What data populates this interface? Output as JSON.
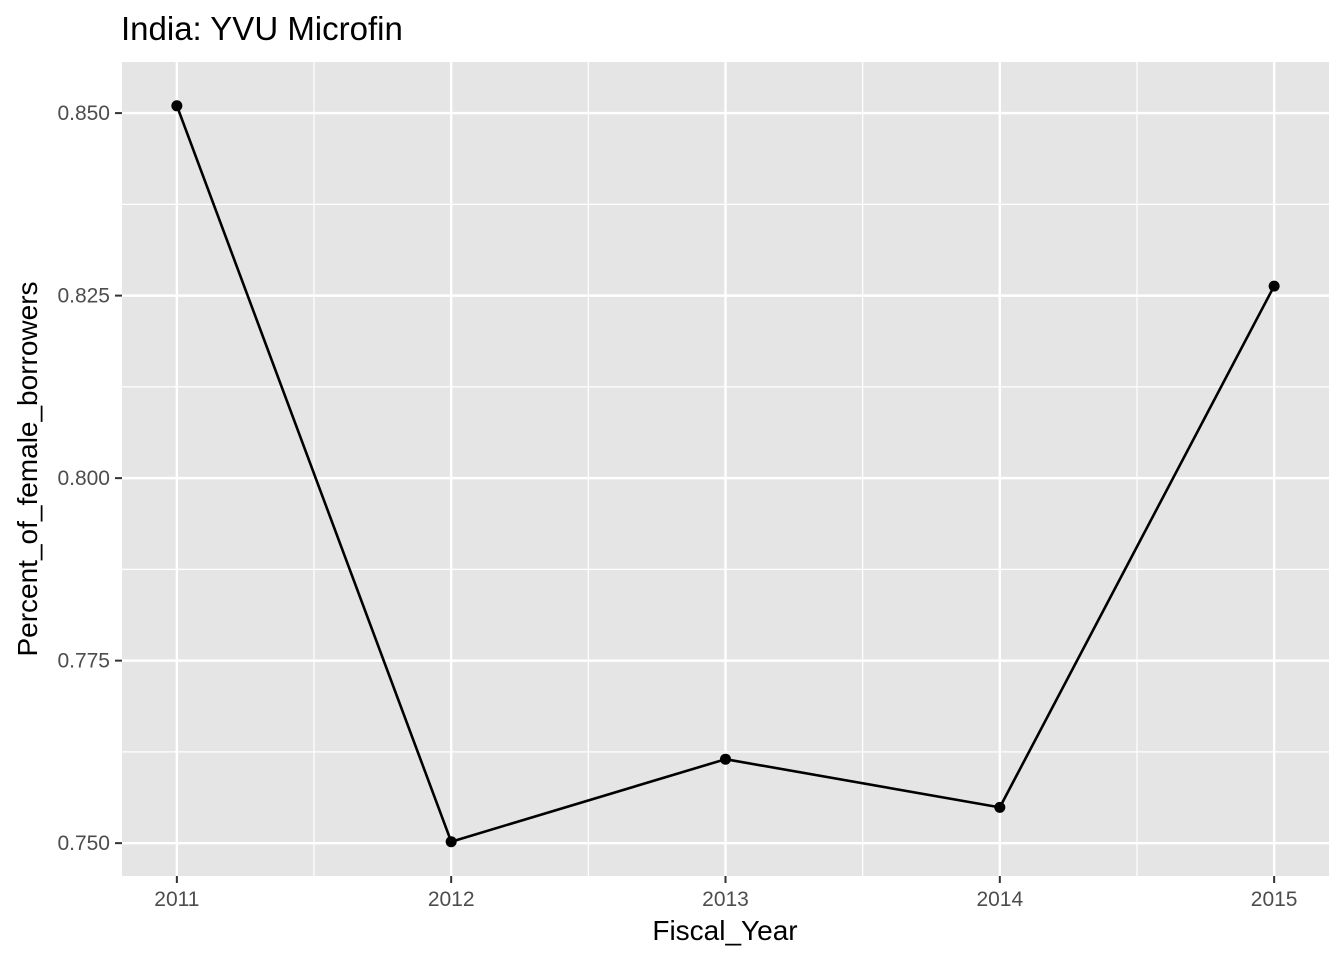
{
  "chart_data": {
    "type": "line",
    "title": "India:  YVU Microfin",
    "xlabel": "Fiscal_Year",
    "ylabel": "Percent_of_female_borrowers",
    "x": [
      2011,
      2012,
      2013,
      2014,
      2015
    ],
    "series": [
      {
        "values": [
          0.851,
          0.7502,
          0.7615,
          0.7549,
          0.8263
        ]
      }
    ],
    "x_ticks": [
      "2011",
      "2012",
      "2013",
      "2014",
      "2015"
    ],
    "y_ticks": [
      "0.750",
      "0.775",
      "0.800",
      "0.825",
      "0.850"
    ],
    "xlim": [
      2010.8,
      2015.2
    ],
    "ylim": [
      0.7455,
      0.857
    ],
    "grid": true,
    "legend": "none",
    "colors": {
      "panel_background": "#e5e5e5",
      "grid": "#ffffff",
      "line": "#000000",
      "point": "#000000",
      "tick_text": "#4d4d4d",
      "tick_mark": "#333333"
    }
  }
}
